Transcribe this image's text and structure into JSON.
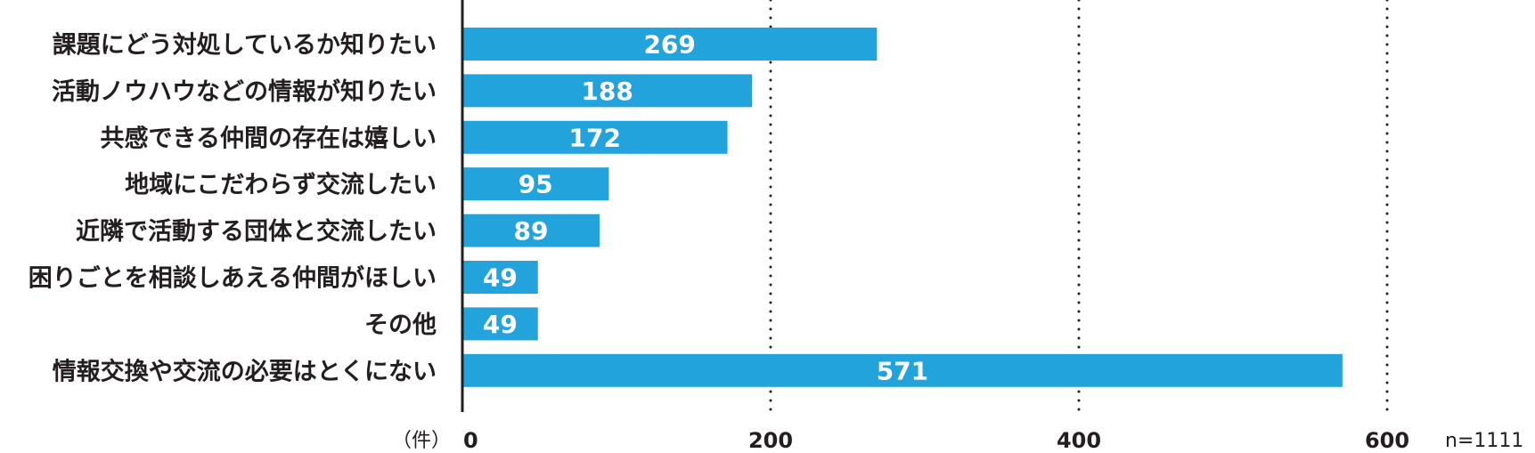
{
  "chart_data": {
    "type": "bar",
    "orientation": "horizontal",
    "categories": [
      "課題にどう対処しているか知りたい",
      "活動ノウハウなどの情報が知りたい",
      "共感できる仲間の存在は嬉しい",
      "地域にこだわらず交流したい",
      "近隣で活動する団体と交流したい",
      "困りごとを相談しあえる仲間がほしい",
      "その他",
      "情報交換や交流の必要はとくにない"
    ],
    "values": [
      269,
      188,
      172,
      95,
      89,
      49,
      49,
      571
    ],
    "xlim": [
      0,
      600
    ],
    "x_ticks": [
      "0",
      "200",
      "400",
      "600"
    ],
    "unit_label": "（件）",
    "sample_note": "n=1111",
    "grid": "vertical dotted",
    "data_labels": "inside bars",
    "colors": {
      "bar": "#22a3dc",
      "axis": "#231f20",
      "text": "#231f20",
      "bar_label": "#ffffff"
    }
  }
}
